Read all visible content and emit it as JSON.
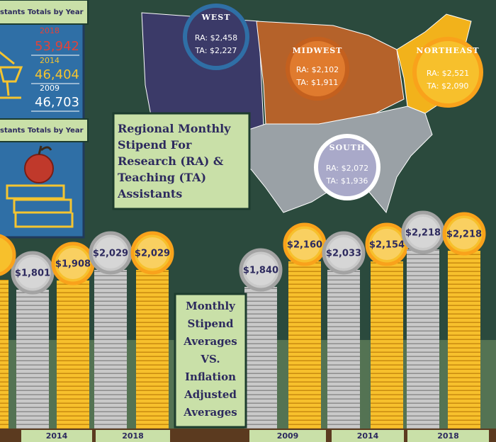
{
  "left_panel": {
    "header_1": "stants Totals by Year",
    "totals": [
      {
        "year": "2018",
        "value": "53,942",
        "color": "#e0433a"
      },
      {
        "year": "2014",
        "value": "46,404",
        "color": "#f4c430"
      },
      {
        "year": "2009",
        "value": "46,703",
        "color": "#ffffff"
      }
    ],
    "header_2": "stants Totals by Year"
  },
  "map": {
    "title": "Regional Monthly Stipend For Research (RA) & Teaching (TA) Assistants",
    "regions": [
      {
        "name": "WEST",
        "ra": "RA: $2,458",
        "ta": "TA: $2,227"
      },
      {
        "name": "MIDWEST",
        "ra": "RA: $2,102",
        "ta": "TA: $1,911"
      },
      {
        "name": "NORTHEAST",
        "ra": "RA: $2,521",
        "ta": "TA: $2,090"
      },
      {
        "name": "SOUTH",
        "ra": "RA: $2,072",
        "ta": "TA: $1,936"
      }
    ]
  },
  "stipend": {
    "title": "Monthly Stipend Averages VS. Inflation Adjusted Averages",
    "coins": [
      {
        "value": "$1,801",
        "kind": "silver"
      },
      {
        "value": "$1,908",
        "kind": "gold"
      },
      {
        "value": "$2,029",
        "kind": "silver"
      },
      {
        "value": "$2,029",
        "kind": "gold"
      },
      {
        "value": "$1,840",
        "kind": "silver"
      },
      {
        "value": "$2,160",
        "kind": "gold"
      },
      {
        "value": "$2,033",
        "kind": "silver"
      },
      {
        "value": "$2,154",
        "kind": "gold"
      },
      {
        "value": "$2,218",
        "kind": "silver"
      },
      {
        "value": "$2,218",
        "kind": "gold"
      }
    ],
    "years": [
      "2014",
      "2018",
      "2009",
      "2014",
      "2018"
    ]
  }
}
